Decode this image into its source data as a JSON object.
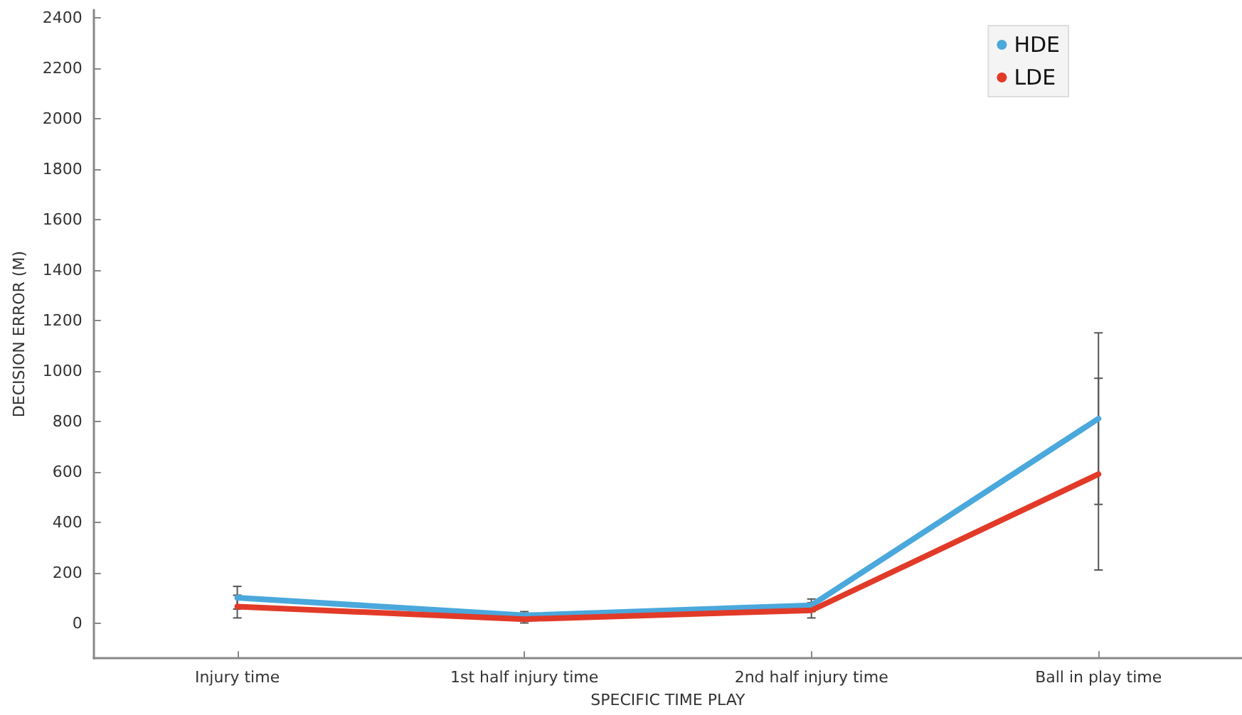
{
  "chart_data": {
    "type": "line",
    "xlabel": "SPECIFIC TIME PLAY",
    "ylabel": "DECISION ERROR (M)",
    "categories": [
      "Injury time",
      "1st half injury time",
      "2nd half injury time",
      "Ball in play time"
    ],
    "series": [
      {
        "name": "HDE",
        "color": "#4aa8dc",
        "values": [
          100,
          30,
          70,
          810
        ],
        "errors": [
          45,
          15,
          25,
          340
        ]
      },
      {
        "name": "LDE",
        "color": "#e23a28",
        "values": [
          65,
          15,
          50,
          590
        ],
        "errors": [
          45,
          15,
          30,
          380
        ]
      }
    ],
    "ylim": [
      -140,
      2430
    ],
    "yticks": [
      0,
      200,
      400,
      600,
      800,
      1000,
      1200,
      1400,
      1600,
      1800,
      2000,
      2200,
      2400
    ],
    "grid": false,
    "legend": "top right",
    "marker": "none",
    "line_style": "solid"
  }
}
